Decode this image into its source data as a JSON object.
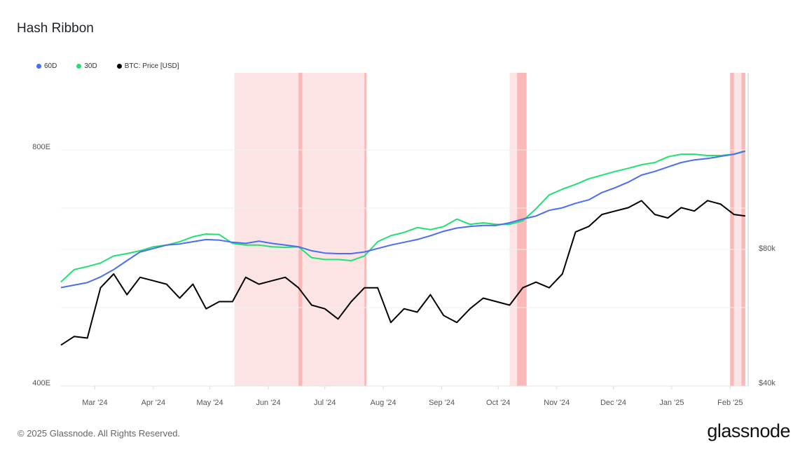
{
  "title": "Hash Ribbon",
  "footer": "© 2025 Glassnode. All Rights Reserved.",
  "logo": "glassnode",
  "colors": {
    "series_60d": "#4a6cf7",
    "series_30d": "#1ee36f",
    "price": "#000000",
    "band_light": "#fde4e4",
    "band_dark": "#f9b9b9"
  },
  "chart_data": {
    "type": "line",
    "title": "Hash Ribbon",
    "legend_position": "top-left",
    "grid": true,
    "x_tick_labels": [
      "Mar '24",
      "Apr '24",
      "May '24",
      "Jun '24",
      "Jul '24",
      "Aug '24",
      "Sep '24",
      "Oct '24",
      "Nov '24",
      "Dec '24",
      "Jan '25",
      "Feb '25"
    ],
    "x_tick_dates": [
      "2024-03-01",
      "2024-04-01",
      "2024-05-01",
      "2024-06-01",
      "2024-07-01",
      "2024-08-01",
      "2024-09-01",
      "2024-10-01",
      "2024-11-01",
      "2024-12-01",
      "2025-01-01",
      "2025-02-01"
    ],
    "x_range": [
      "2024-02-12",
      "2025-02-09"
    ],
    "y_left": {
      "scale": "log",
      "range": [
        400,
        800
      ],
      "ticks": [
        {
          "value": 400,
          "label": "400E"
        },
        {
          "value": 800,
          "label": "800E"
        }
      ]
    },
    "y_right": {
      "scale": "log",
      "range": [
        40000,
        100000
      ],
      "ticks": [
        {
          "value": 40000,
          "label": "$40k"
        },
        {
          "value": 80000,
          "label": "$80k"
        }
      ]
    },
    "x": [
      "2024-02-12",
      "2024-02-19",
      "2024-02-26",
      "2024-03-04",
      "2024-03-11",
      "2024-03-18",
      "2024-03-25",
      "2024-04-01",
      "2024-04-08",
      "2024-04-15",
      "2024-04-22",
      "2024-04-29",
      "2024-05-06",
      "2024-05-13",
      "2024-05-20",
      "2024-05-27",
      "2024-06-03",
      "2024-06-10",
      "2024-06-17",
      "2024-06-24",
      "2024-07-01",
      "2024-07-08",
      "2024-07-15",
      "2024-07-22",
      "2024-07-29",
      "2024-08-05",
      "2024-08-12",
      "2024-08-19",
      "2024-08-26",
      "2024-09-02",
      "2024-09-09",
      "2024-09-16",
      "2024-09-23",
      "2024-09-30",
      "2024-10-07",
      "2024-10-14",
      "2024-10-21",
      "2024-10-28",
      "2024-11-04",
      "2024-11-11",
      "2024-11-18",
      "2024-11-25",
      "2024-12-02",
      "2024-12-09",
      "2024-12-16",
      "2024-12-23",
      "2024-12-30",
      "2025-01-06",
      "2025-01-13",
      "2025-01-20",
      "2025-01-27",
      "2025-02-03",
      "2025-02-09"
    ],
    "series": [
      {
        "name": "60D",
        "axis": "left",
        "color": "#4a6cf7",
        "values": [
          534,
          538,
          542,
          551,
          563,
          578,
          593,
          599,
          605,
          607,
          611,
          615,
          614,
          610,
          608,
          612,
          608,
          605,
          602,
          595,
          591,
          590,
          590,
          593,
          599,
          605,
          610,
          615,
          622,
          630,
          636,
          639,
          641,
          641,
          646,
          653,
          659,
          670,
          675,
          684,
          691,
          706,
          716,
          728,
          743,
          751,
          761,
          771,
          777,
          780,
          785,
          790,
          797
        ]
      },
      {
        "name": "30D",
        "axis": "left",
        "color": "#1ee36f",
        "values": [
          543,
          563,
          568,
          574,
          586,
          590,
          595,
          602,
          605,
          611,
          620,
          625,
          624,
          608,
          605,
          605,
          602,
          601,
          602,
          583,
          580,
          580,
          578,
          586,
          611,
          622,
          628,
          637,
          633,
          639,
          653,
          643,
          646,
          643,
          643,
          650,
          673,
          701,
          713,
          723,
          735,
          743,
          751,
          758,
          766,
          771,
          784,
          790,
          790,
          787,
          787,
          790,
          798
        ]
      },
      {
        "name": "BTC: Price [USD]",
        "axis": "right",
        "color": "#000000",
        "values": [
          48500,
          50700,
          50300,
          65200,
          70000,
          62900,
          68800,
          67600,
          66400,
          61800,
          66400,
          58500,
          60700,
          60700,
          68800,
          66400,
          67600,
          68800,
          65200,
          59600,
          58500,
          55500,
          60700,
          65200,
          65200,
          54500,
          58500,
          57500,
          62900,
          56500,
          54500,
          58500,
          61800,
          60700,
          59600,
          65200,
          67100,
          65200,
          70000,
          86900,
          89400,
          95100,
          96800,
          98500,
          102100,
          95100,
          93400,
          98500,
          96800,
          102100,
          100300,
          95100,
          94400
        ]
      }
    ],
    "capitulation_bands": [
      {
        "start": "2024-05-14",
        "end": "2024-07-23",
        "intensity": "light"
      },
      {
        "start": "2024-06-17",
        "end": "2024-06-19",
        "intensity": "dark"
      },
      {
        "start": "2024-07-22",
        "end": "2024-07-23",
        "intensity": "dark"
      },
      {
        "start": "2024-10-07",
        "end": "2024-10-16",
        "intensity": "light"
      },
      {
        "start": "2024-10-11",
        "end": "2024-10-16",
        "intensity": "dark"
      },
      {
        "start": "2025-02-01",
        "end": "2025-02-09",
        "intensity": "light"
      },
      {
        "start": "2025-02-01",
        "end": "2025-02-03",
        "intensity": "dark"
      },
      {
        "start": "2025-02-07",
        "end": "2025-02-09",
        "intensity": "dark"
      }
    ]
  }
}
